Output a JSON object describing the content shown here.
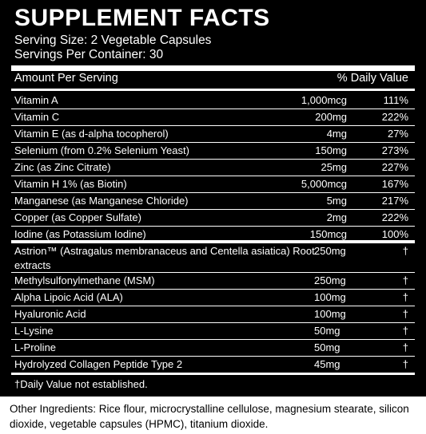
{
  "panel": {
    "title": "SUPPLEMENT FACTS",
    "serving_size": "Serving Size: 2 Vegetable Capsules",
    "servings_per_container": "Servings Per Container: 30",
    "header_amount": "Amount Per Serving",
    "header_dv": "% Daily Value",
    "vitamins": [
      {
        "name": "Vitamin A",
        "amount": "1,000mcg",
        "dv": "111%"
      },
      {
        "name": "Vitamin C",
        "amount": "200mg",
        "dv": "222%"
      },
      {
        "name": "Vitamin E (as d-alpha tocopherol)",
        "amount": "4mg",
        "dv": "27%"
      },
      {
        "name": "Selenium (from 0.2% Selenium Yeast)",
        "amount": "150mg",
        "dv": "273%"
      },
      {
        "name": "Zinc (as Zinc Citrate)",
        "amount": "25mg",
        "dv": "227%"
      },
      {
        "name": "Vitamin H 1% (as Biotin)",
        "amount": "5,000mcg",
        "dv": "167%"
      },
      {
        "name": "Manganese (as Manganese Chloride)",
        "amount": "5mg",
        "dv": "217%"
      },
      {
        "name": "Copper (as Copper Sulfate)",
        "amount": "2mg",
        "dv": "222%"
      },
      {
        "name": "Iodine (as Potassium Iodine)",
        "amount": "150mcg",
        "dv": "100%"
      }
    ],
    "others": [
      {
        "name": "Astrion™ (Astragalus membranaceus and Centella asiatica) Root extracts",
        "amount": "250mg",
        "dv": "†"
      },
      {
        "name": "Methylsulfonylmethane (MSM)",
        "amount": "250mg",
        "dv": "†"
      },
      {
        "name": "Alpha Lipoic Acid (ALA)",
        "amount": "100mg",
        "dv": "†"
      },
      {
        "name": "Hyaluronic Acid",
        "amount": "100mg",
        "dv": "†"
      },
      {
        "name": "L-Lysine",
        "amount": "50mg",
        "dv": "†"
      },
      {
        "name": "L-Proline",
        "amount": "50mg",
        "dv": "†"
      },
      {
        "name": "Hydrolyzed Collagen Peptide Type 2",
        "amount": "45mg",
        "dv": "†"
      }
    ],
    "footnote": "†Daily Value not established."
  },
  "other_ingredients": "Other Ingredients: Rice flour, microcrystalline cellulose, magnesium stearate, silicon dioxide, vegetable capsules (HPMC), titanium dioxide.",
  "colors": {
    "panel": "#000000",
    "text": "#ffffff",
    "page": "#ffffff"
  }
}
